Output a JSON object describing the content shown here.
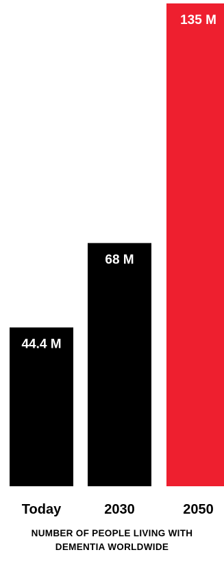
{
  "chart_data": {
    "type": "bar",
    "categories": [
      "Today",
      "2030",
      "2050"
    ],
    "values": [
      44.4,
      68,
      135
    ],
    "value_labels": [
      "44.4 M",
      "68 M",
      "135 M"
    ],
    "colors": [
      "#000000",
      "#000000",
      "#ee1f2f"
    ],
    "caption_lines": [
      "NUMBER OF PEOPLE LIVING WITH",
      "DEMENTIA WORLDWIDE"
    ],
    "ylim": [
      0,
      135
    ],
    "grid": false,
    "legend": "none"
  }
}
